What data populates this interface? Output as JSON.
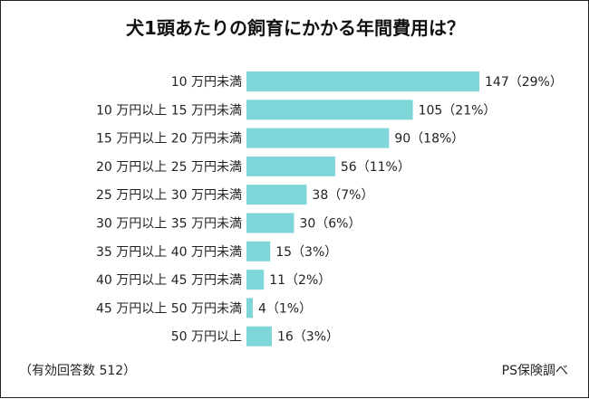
{
  "chart_data": {
    "type": "bar",
    "orientation": "horizontal",
    "title": "犬1頭あたりの飼育にかかる年間費用は？",
    "categories": [
      "10 万円未満",
      "10 万円以上 15 万円未満",
      "15 万円以上 20 万円未満",
      "20 万円以上 25 万円未満",
      "25 万円以上 30 万円未満",
      "30 万円以上 35 万円未満",
      "35 万円以上 40 万円未満",
      "40 万円以上 45 万円未満",
      "45 万円以上 50 万円未満",
      "50 万円以上"
    ],
    "values": [
      147,
      105,
      90,
      56,
      38,
      30,
      15,
      11,
      4,
      16
    ],
    "value_labels": [
      "147（29%）",
      "105（21%）",
      "90（18%）",
      "56（11%）",
      "38（7%）",
      "30（6%）",
      "15（3%）",
      "11（2%）",
      "4（1%）",
      "16（3%）"
    ],
    "xlim": [
      0,
      147
    ],
    "bar_color": "#7fd6d8",
    "grid": false,
    "xlabel": "",
    "ylabel": ""
  },
  "footer": {
    "note": "（有効回答数 512）",
    "source": "PS保険調べ"
  }
}
